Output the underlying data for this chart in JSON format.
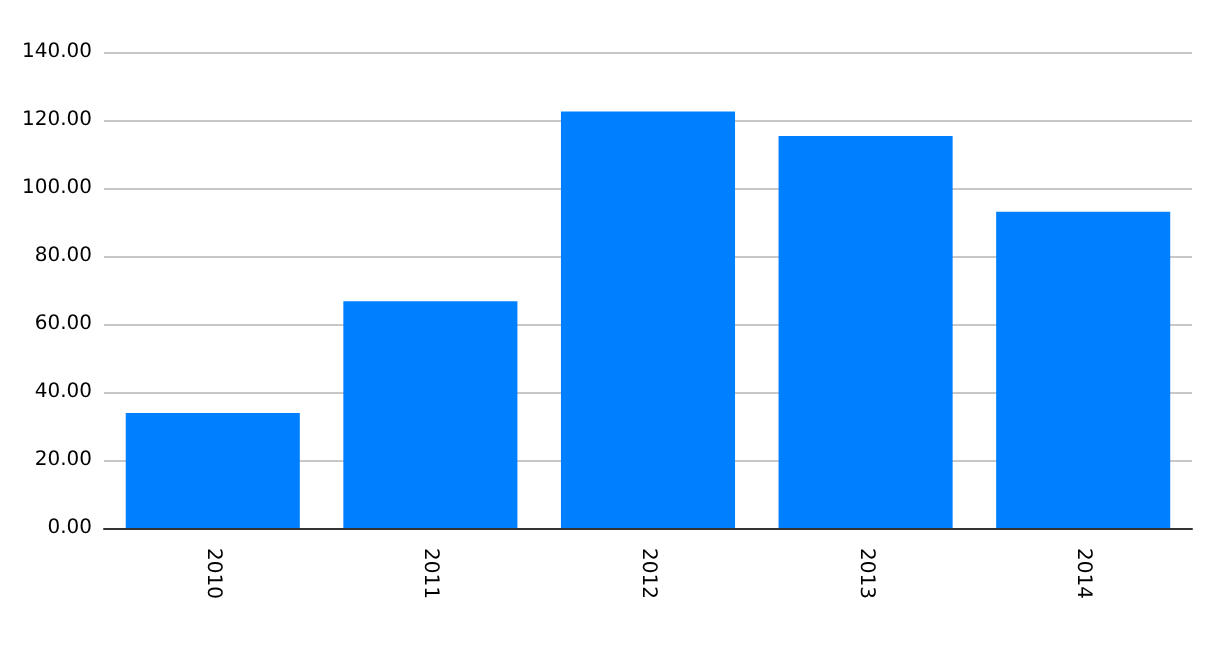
{
  "chart_data": {
    "type": "bar",
    "categories": [
      "2010",
      "2011",
      "2012",
      "2013",
      "2014"
    ],
    "values": [
      33.8,
      66.7,
      122.5,
      115.3,
      93.0
    ],
    "color": "#007fff",
    "ylim": [
      0,
      140
    ],
    "yticks": [
      {
        "value": 0,
        "label": "0.00"
      },
      {
        "value": 20,
        "label": "20.00"
      },
      {
        "value": 40,
        "label": "40.00"
      },
      {
        "value": 60,
        "label": "60.00"
      },
      {
        "value": 80,
        "label": "80.00"
      },
      {
        "value": 100,
        "label": "100.00"
      },
      {
        "value": 120,
        "label": "120.00"
      },
      {
        "value": 140,
        "label": "140.00"
      }
    ],
    "grid": "y"
  }
}
